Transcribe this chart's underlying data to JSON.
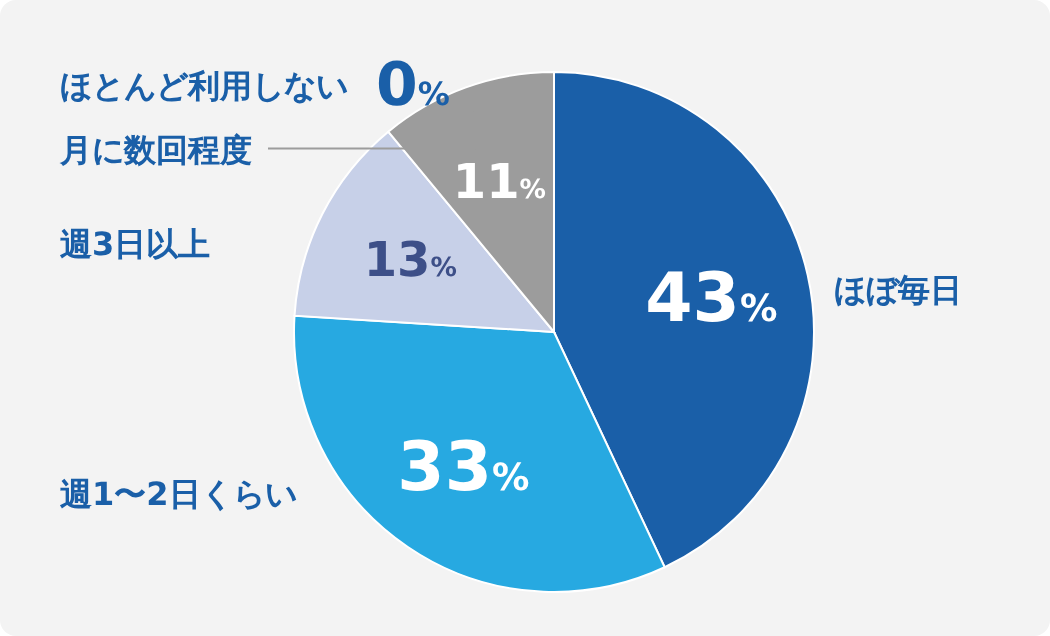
{
  "chart_data": {
    "type": "pie",
    "categories": [
      "ほぼ毎日",
      "週1〜2日くらい",
      "週3日以上",
      "月に数回程度",
      "ほとんど利用しない"
    ],
    "values": [
      43,
      33,
      13,
      11,
      0
    ],
    "colors": [
      "#1a5fa8",
      "#27a9e1",
      "#c7d0e8",
      "#9c9c9c",
      "#1a5fa8"
    ],
    "value_labels": [
      "43%",
      "33%",
      "13%",
      "11%",
      "0%"
    ],
    "legend": false
  }
}
